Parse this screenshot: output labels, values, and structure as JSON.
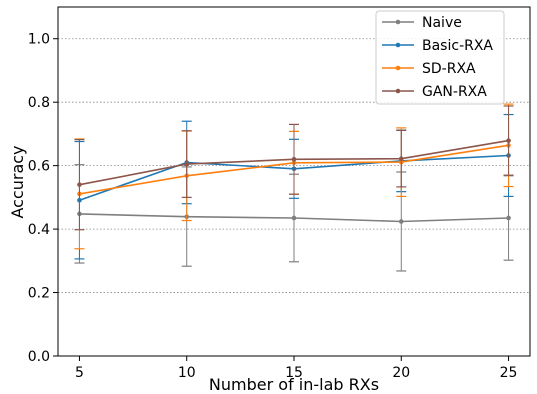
{
  "chart_data": {
    "type": "line",
    "x": [
      5,
      10,
      15,
      20,
      25
    ],
    "xticks": [
      5,
      10,
      15,
      20,
      25
    ],
    "yticks": [
      0.0,
      0.2,
      0.4,
      0.6,
      0.8,
      1.0
    ],
    "ytick_labels": [
      "0.0",
      "0.2",
      "0.4",
      "0.6",
      "0.8",
      "1.0"
    ],
    "xlim": [
      4,
      26
    ],
    "ylim": [
      0.0,
      1.1
    ],
    "xlabel": "Number of in-lab RXs",
    "ylabel": "Accuracy",
    "grid": "horizontal dotted",
    "legend_position": "top-right",
    "series": [
      {
        "name": "Naive",
        "color": "#7f7f7f",
        "values": [
          0.448,
          0.439,
          0.435,
          0.424,
          0.435
        ],
        "err_low": [
          0.293,
          0.283,
          0.297,
          0.268,
          0.302
        ],
        "err_high": [
          0.603,
          0.596,
          0.573,
          0.58,
          0.568
        ]
      },
      {
        "name": "Basic-RXA",
        "color": "#1f77b4",
        "values": [
          0.491,
          0.61,
          0.59,
          0.615,
          0.632
        ],
        "err_low": [
          0.306,
          0.48,
          0.497,
          0.518,
          0.503
        ],
        "err_high": [
          0.676,
          0.74,
          0.683,
          0.712,
          0.761
        ]
      },
      {
        "name": "SD-RXA",
        "color": "#ff7f0e",
        "values": [
          0.511,
          0.568,
          0.609,
          0.611,
          0.664
        ],
        "err_low": [
          0.338,
          0.427,
          0.51,
          0.503,
          0.534
        ],
        "err_high": [
          0.684,
          0.709,
          0.708,
          0.719,
          0.794
        ]
      },
      {
        "name": "GAN-RXA",
        "color": "#8c564b",
        "values": [
          0.54,
          0.605,
          0.62,
          0.622,
          0.679
        ],
        "err_low": [
          0.398,
          0.5,
          0.51,
          0.533,
          0.57
        ],
        "err_high": [
          0.682,
          0.71,
          0.73,
          0.711,
          0.788
        ]
      }
    ]
  }
}
